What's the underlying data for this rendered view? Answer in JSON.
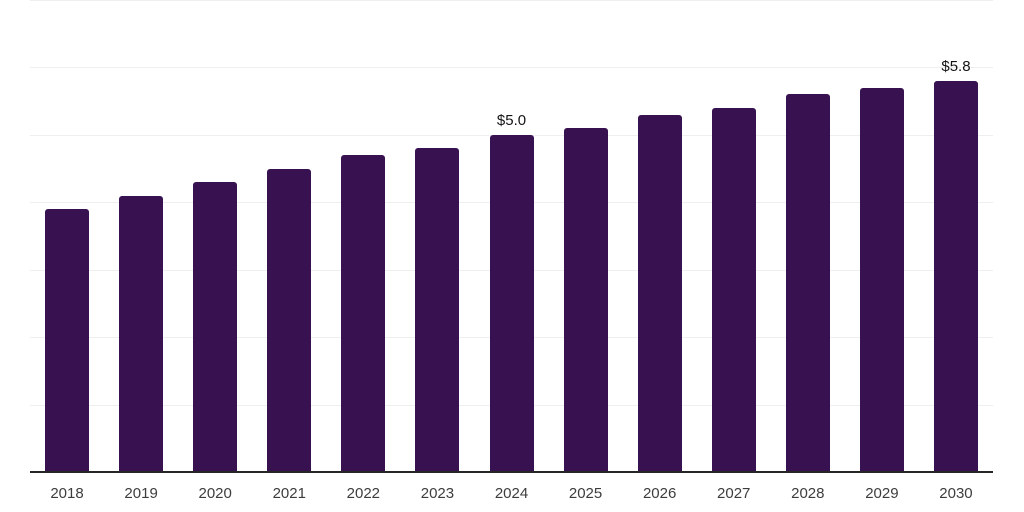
{
  "chart_data": {
    "type": "bar",
    "categories": [
      "2018",
      "2019",
      "2020",
      "2021",
      "2022",
      "2023",
      "2024",
      "2025",
      "2026",
      "2027",
      "2028",
      "2029",
      "2030"
    ],
    "values": [
      3.9,
      4.1,
      4.3,
      4.5,
      4.7,
      4.8,
      5.0,
      5.1,
      5.3,
      5.4,
      5.6,
      5.7,
      5.8
    ],
    "data_labels": [
      {
        "category": "2024",
        "text": "$5.0"
      },
      {
        "category": "2030",
        "text": "$5.8"
      }
    ],
    "ylim": [
      0,
      7
    ],
    "gridline_values": [
      1,
      2,
      3,
      4,
      5,
      6,
      7
    ],
    "grid": "horizontal",
    "legend_position": "none",
    "colors": {
      "bar": "#371150",
      "axis_line": "#262626",
      "gridline": "#efefef",
      "tick_label": "#3d3d3d",
      "value_label": "#141414",
      "background": "#ffffff"
    }
  }
}
